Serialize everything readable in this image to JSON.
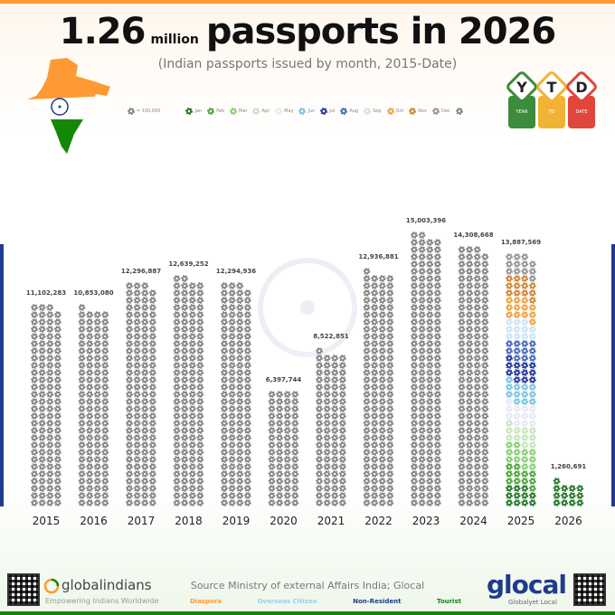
{
  "title": {
    "number": "1.26",
    "unit": "million",
    "rest": "passports in 2026",
    "subtitle": "(Indian passports issued by month, 2015-Date)"
  },
  "badge": {
    "letters": [
      "Y",
      "T",
      "D"
    ],
    "sublabels": [
      "YEAR",
      "TO",
      "DATE"
    ]
  },
  "legend": {
    "unit_label": "= 100,000",
    "months": [
      "Jan",
      "Feb",
      "Mar",
      "Apr",
      "May",
      "Jun",
      "Jul",
      "Aug",
      "Sep",
      "Oct",
      "Nov",
      "Dec"
    ]
  },
  "colors": {
    "default": "#8a8a8a",
    "months": [
      "#2e7d32",
      "#56a845",
      "#8fd07a",
      "#c7e6bf",
      "#e7eaf2",
      "#7fc6e3",
      "#2f3fa0",
      "#4f6fc0",
      "#cfe4f7",
      "#f1a54a",
      "#d28a3e",
      "#9a9a9a"
    ],
    "saffron": "#ff9933",
    "green": "#138808",
    "navy": "#1f3b8c"
  },
  "chart_data": {
    "type": "bar",
    "categories": [
      "2015",
      "2016",
      "2017",
      "2018",
      "2019",
      "2020",
      "2021",
      "2022",
      "2023",
      "2024",
      "2025",
      "2026"
    ],
    "values": [
      11102283,
      10853080,
      12296887,
      12639252,
      12294936,
      6397744,
      8522851,
      12936881,
      15003396,
      14308668,
      13887569,
      1260691
    ],
    "value_labels": [
      "11,102,283",
      "10,853,080",
      "12,296,887",
      "12,639,252",
      "12,294,936",
      "6,397,744",
      "8,522,851",
      "12,936,881",
      "15,003,396",
      "14,308,668",
      "13,887,569",
      "1,260,691"
    ],
    "unit_per_icon": 100000,
    "monthly_2025_icons": [
      11,
      11,
      12,
      11,
      12,
      12,
      12,
      11,
      11,
      12,
      12,
      12
    ],
    "monthly_2026_icons": [
      13
    ],
    "title": "1.26 million passports in 2026",
    "xlabel": "",
    "ylabel": ""
  },
  "footer": {
    "source": "Source Ministry of external Affairs India; Glocal",
    "categories": [
      "Diaspora",
      "Overseas Citizen",
      "Non-Resident",
      "Tourist"
    ],
    "category_colors": [
      "#ff9933",
      "#9ad0ec",
      "#1f3b8c",
      "#138808"
    ],
    "left_brand": "globalindians",
    "left_tagline": "Empowering Indians Worldwide",
    "right_brand": "glocal",
    "right_tagline": "Globalyet Local"
  }
}
